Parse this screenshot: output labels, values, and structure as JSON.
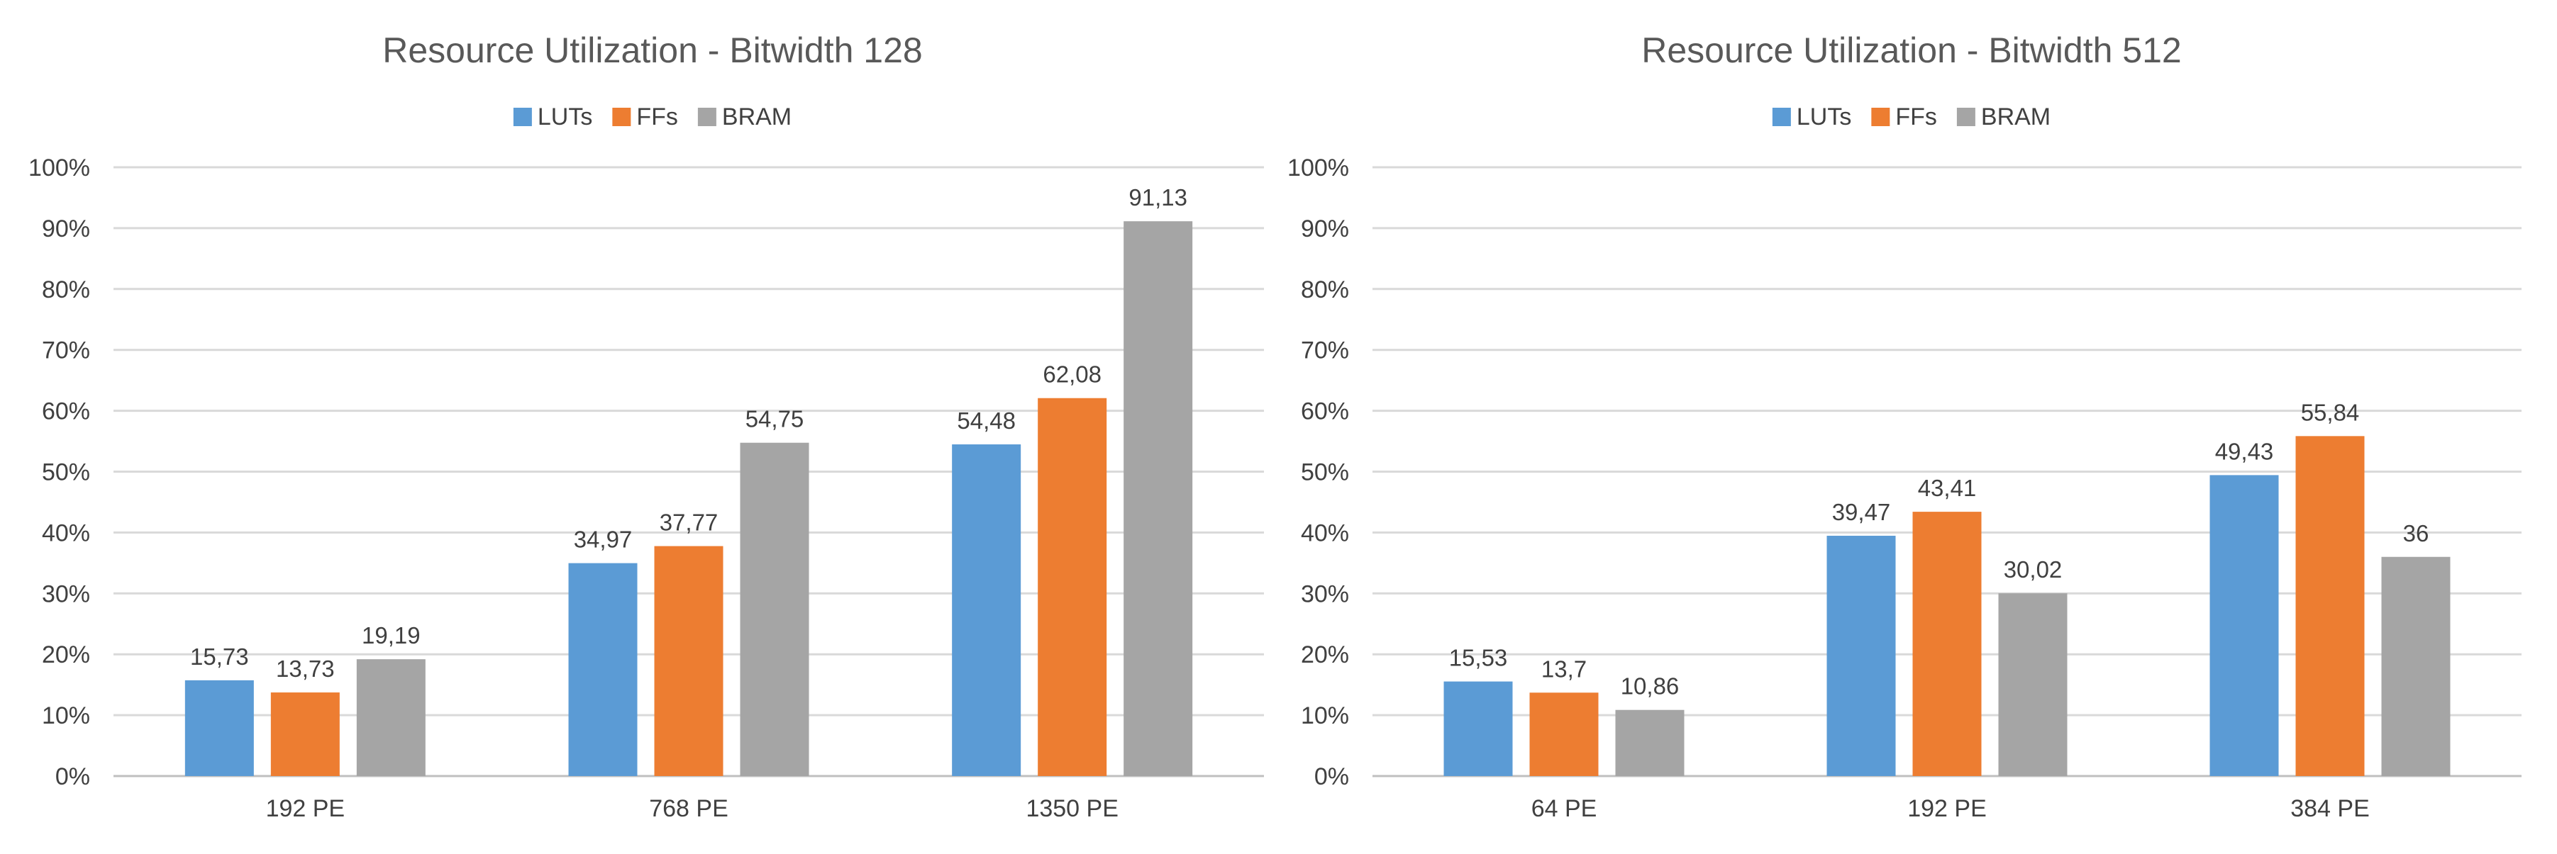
{
  "colors": {
    "luts": "#5B9BD5",
    "ffs": "#ED7D31",
    "bram": "#A5A5A5",
    "gridline": "#D9D9D9",
    "axis": "#BFBFBF",
    "title_text": "#595959",
    "label_text": "#404040"
  },
  "chart_data": [
    {
      "type": "bar",
      "title": "Resource Utilization - Bitwidth 128",
      "xlabel": "",
      "ylabel": "",
      "ylim": [
        0,
        100
      ],
      "yticks": [
        "0%",
        "10%",
        "20%",
        "30%",
        "40%",
        "50%",
        "60%",
        "70%",
        "80%",
        "90%",
        "100%"
      ],
      "legend_position": "top-center",
      "grid": true,
      "categories": [
        "192 PE",
        "768 PE",
        "1350 PE"
      ],
      "series": [
        {
          "name": "LUTs",
          "values": [
            15.73,
            34.97,
            54.48
          ],
          "labels": [
            "15,73",
            "34,97",
            "54,48"
          ]
        },
        {
          "name": "FFs",
          "values": [
            13.73,
            37.77,
            62.08
          ],
          "labels": [
            "13,73",
            "37,77",
            "62,08"
          ]
        },
        {
          "name": "BRAM",
          "values": [
            19.19,
            54.75,
            91.13
          ],
          "labels": [
            "19,19",
            "54,75",
            "91,13"
          ]
        }
      ]
    },
    {
      "type": "bar",
      "title": "Resource Utilization - Bitwidth 512",
      "xlabel": "",
      "ylabel": "",
      "ylim": [
        0,
        100
      ],
      "yticks": [
        "0%",
        "10%",
        "20%",
        "30%",
        "40%",
        "50%",
        "60%",
        "70%",
        "80%",
        "90%",
        "100%"
      ],
      "legend_position": "top-center",
      "grid": true,
      "categories": [
        "64 PE",
        "192 PE",
        "384 PE"
      ],
      "series": [
        {
          "name": "LUTs",
          "values": [
            15.53,
            39.47,
            49.43
          ],
          "labels": [
            "15,53",
            "39,47",
            "49,43"
          ]
        },
        {
          "name": "FFs",
          "values": [
            13.7,
            43.41,
            55.84
          ],
          "labels": [
            "13,7",
            "43,41",
            "55,84"
          ]
        },
        {
          "name": "BRAM",
          "values": [
            10.86,
            30.02,
            36
          ],
          "labels": [
            "10,86",
            "30,02",
            "36"
          ]
        }
      ]
    }
  ]
}
